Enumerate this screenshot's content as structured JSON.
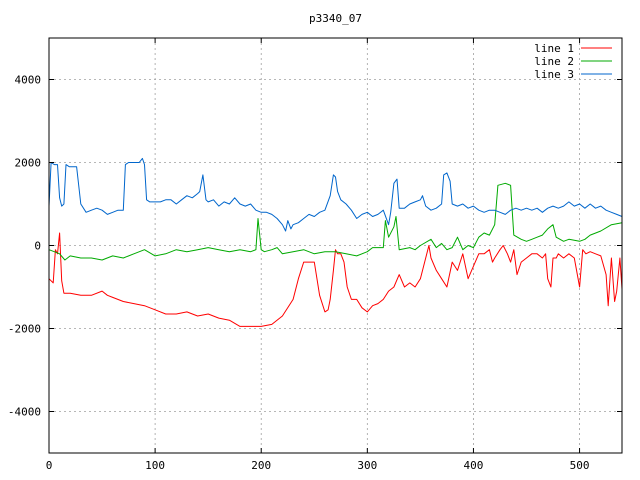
{
  "chart_data": {
    "type": "line",
    "title": "p3340_07",
    "xlabel": "",
    "ylabel": "",
    "xlim": [
      0,
      540
    ],
    "ylim": [
      -5000,
      5000
    ],
    "xticks": [
      0,
      100,
      200,
      300,
      400,
      500
    ],
    "yticks": [
      -4000,
      -2000,
      0,
      2000,
      4000
    ],
    "xtick_labels": [
      "0",
      "100",
      "200",
      "300",
      "400",
      "500"
    ],
    "ytick_labels": [
      "-4000",
      "-2000",
      "0",
      "2000",
      "4000"
    ],
    "grid": true,
    "legend_position": "top-right",
    "series": [
      {
        "name": "line 1",
        "color": "#ff0000",
        "points": [
          [
            0,
            -800
          ],
          [
            2,
            -850
          ],
          [
            4,
            -900
          ],
          [
            6,
            -100
          ],
          [
            8,
            -200
          ],
          [
            10,
            300
          ],
          [
            12,
            -850
          ],
          [
            14,
            -1150
          ],
          [
            20,
            -1150
          ],
          [
            30,
            -1200
          ],
          [
            40,
            -1200
          ],
          [
            50,
            -1100
          ],
          [
            55,
            -1200
          ],
          [
            60,
            -1250
          ],
          [
            70,
            -1350
          ],
          [
            80,
            -1400
          ],
          [
            90,
            -1450
          ],
          [
            100,
            -1550
          ],
          [
            110,
            -1650
          ],
          [
            120,
            -1650
          ],
          [
            130,
            -1600
          ],
          [
            140,
            -1700
          ],
          [
            150,
            -1650
          ],
          [
            160,
            -1750
          ],
          [
            170,
            -1800
          ],
          [
            180,
            -1950
          ],
          [
            190,
            -1950
          ],
          [
            200,
            -1950
          ],
          [
            210,
            -1900
          ],
          [
            220,
            -1700
          ],
          [
            230,
            -1300
          ],
          [
            235,
            -800
          ],
          [
            240,
            -400
          ],
          [
            245,
            -400
          ],
          [
            250,
            -400
          ],
          [
            255,
            -1200
          ],
          [
            260,
            -1600
          ],
          [
            263,
            -1550
          ],
          [
            265,
            -1300
          ],
          [
            268,
            -600
          ],
          [
            270,
            -100
          ],
          [
            272,
            -200
          ],
          [
            275,
            -200
          ],
          [
            278,
            -400
          ],
          [
            281,
            -1000
          ],
          [
            285,
            -1300
          ],
          [
            290,
            -1300
          ],
          [
            295,
            -1500
          ],
          [
            300,
            -1600
          ],
          [
            305,
            -1450
          ],
          [
            310,
            -1400
          ],
          [
            315,
            -1300
          ],
          [
            320,
            -1100
          ],
          [
            325,
            -1000
          ],
          [
            330,
            -700
          ],
          [
            335,
            -1000
          ],
          [
            340,
            -900
          ],
          [
            345,
            -1000
          ],
          [
            350,
            -800
          ],
          [
            355,
            -300
          ],
          [
            358,
            0
          ],
          [
            360,
            -300
          ],
          [
            365,
            -600
          ],
          [
            370,
            -800
          ],
          [
            375,
            -1000
          ],
          [
            380,
            -400
          ],
          [
            385,
            -600
          ],
          [
            390,
            -200
          ],
          [
            395,
            -800
          ],
          [
            400,
            -500
          ],
          [
            405,
            -200
          ],
          [
            410,
            -200
          ],
          [
            415,
            -100
          ],
          [
            418,
            -400
          ],
          [
            420,
            -300
          ],
          [
            425,
            -100
          ],
          [
            428,
            0
          ],
          [
            432,
            -200
          ],
          [
            435,
            -400
          ],
          [
            438,
            -100
          ],
          [
            441,
            -700
          ],
          [
            445,
            -400
          ],
          [
            450,
            -300
          ],
          [
            455,
            -200
          ],
          [
            460,
            -200
          ],
          [
            465,
            -300
          ],
          [
            468,
            -200
          ],
          [
            470,
            -800
          ],
          [
            473,
            -1000
          ],
          [
            475,
            -300
          ],
          [
            478,
            -300
          ],
          [
            480,
            -200
          ],
          [
            485,
            -300
          ],
          [
            490,
            -200
          ],
          [
            495,
            -300
          ],
          [
            500,
            -1000
          ],
          [
            503,
            -100
          ],
          [
            506,
            -200
          ],
          [
            510,
            -150
          ],
          [
            515,
            -200
          ],
          [
            520,
            -250
          ],
          [
            525,
            -700
          ],
          [
            527,
            -1450
          ],
          [
            530,
            -300
          ],
          [
            533,
            -1350
          ],
          [
            535,
            -1100
          ],
          [
            538,
            -300
          ],
          [
            540,
            -1050
          ]
        ]
      },
      {
        "name": "line 2",
        "color": "#00aa00",
        "points": [
          [
            0,
            -100
          ],
          [
            5,
            -150
          ],
          [
            10,
            -200
          ],
          [
            15,
            -350
          ],
          [
            20,
            -250
          ],
          [
            30,
            -300
          ],
          [
            40,
            -300
          ],
          [
            50,
            -350
          ],
          [
            60,
            -250
          ],
          [
            70,
            -300
          ],
          [
            80,
            -200
          ],
          [
            90,
            -100
          ],
          [
            100,
            -250
          ],
          [
            110,
            -200
          ],
          [
            120,
            -100
          ],
          [
            130,
            -150
          ],
          [
            140,
            -100
          ],
          [
            150,
            -50
          ],
          [
            160,
            -100
          ],
          [
            170,
            -150
          ],
          [
            180,
            -100
          ],
          [
            190,
            -150
          ],
          [
            195,
            -100
          ],
          [
            197,
            650
          ],
          [
            200,
            -100
          ],
          [
            203,
            -150
          ],
          [
            210,
            -100
          ],
          [
            215,
            -50
          ],
          [
            220,
            -200
          ],
          [
            230,
            -150
          ],
          [
            240,
            -100
          ],
          [
            250,
            -200
          ],
          [
            260,
            -150
          ],
          [
            270,
            -150
          ],
          [
            280,
            -200
          ],
          [
            290,
            -250
          ],
          [
            300,
            -150
          ],
          [
            305,
            -50
          ],
          [
            310,
            -50
          ],
          [
            315,
            -50
          ],
          [
            317,
            600
          ],
          [
            320,
            200
          ],
          [
            325,
            450
          ],
          [
            327,
            700
          ],
          [
            330,
            -100
          ],
          [
            340,
            -50
          ],
          [
            345,
            -100
          ],
          [
            350,
            0
          ],
          [
            360,
            150
          ],
          [
            365,
            -50
          ],
          [
            370,
            50
          ],
          [
            375,
            -100
          ],
          [
            380,
            -50
          ],
          [
            385,
            200
          ],
          [
            390,
            -100
          ],
          [
            395,
            0
          ],
          [
            400,
            -50
          ],
          [
            405,
            200
          ],
          [
            410,
            300
          ],
          [
            415,
            250
          ],
          [
            420,
            500
          ],
          [
            423,
            1450
          ],
          [
            430,
            1500
          ],
          [
            435,
            1450
          ],
          [
            438,
            250
          ],
          [
            445,
            150
          ],
          [
            450,
            100
          ],
          [
            455,
            150
          ],
          [
            460,
            200
          ],
          [
            465,
            250
          ],
          [
            470,
            400
          ],
          [
            475,
            500
          ],
          [
            478,
            200
          ],
          [
            485,
            100
          ],
          [
            490,
            150
          ],
          [
            500,
            100
          ],
          [
            505,
            150
          ],
          [
            510,
            250
          ],
          [
            520,
            350
          ],
          [
            530,
            500
          ],
          [
            540,
            550
          ]
        ]
      },
      {
        "name": "line 3",
        "color": "#0066cc",
        "points": [
          [
            0,
            950
          ],
          [
            2,
            2000
          ],
          [
            5,
            1950
          ],
          [
            8,
            1950
          ],
          [
            10,
            1150
          ],
          [
            12,
            950
          ],
          [
            14,
            1000
          ],
          [
            16,
            1950
          ],
          [
            19,
            1900
          ],
          [
            22,
            1900
          ],
          [
            26,
            1900
          ],
          [
            30,
            1000
          ],
          [
            35,
            800
          ],
          [
            40,
            850
          ],
          [
            45,
            900
          ],
          [
            50,
            850
          ],
          [
            55,
            750
          ],
          [
            60,
            800
          ],
          [
            65,
            850
          ],
          [
            70,
            850
          ],
          [
            72,
            1950
          ],
          [
            75,
            2000
          ],
          [
            80,
            2000
          ],
          [
            85,
            2000
          ],
          [
            88,
            2100
          ],
          [
            90,
            1950
          ],
          [
            92,
            1100
          ],
          [
            95,
            1050
          ],
          [
            100,
            1050
          ],
          [
            105,
            1050
          ],
          [
            110,
            1100
          ],
          [
            115,
            1100
          ],
          [
            120,
            1000
          ],
          [
            125,
            1100
          ],
          [
            130,
            1200
          ],
          [
            135,
            1150
          ],
          [
            140,
            1250
          ],
          [
            142,
            1300
          ],
          [
            145,
            1700
          ],
          [
            148,
            1100
          ],
          [
            150,
            1050
          ],
          [
            155,
            1100
          ],
          [
            160,
            950
          ],
          [
            165,
            1050
          ],
          [
            170,
            1000
          ],
          [
            175,
            1150
          ],
          [
            180,
            1000
          ],
          [
            185,
            950
          ],
          [
            190,
            1000
          ],
          [
            195,
            850
          ],
          [
            200,
            800
          ],
          [
            205,
            800
          ],
          [
            210,
            750
          ],
          [
            215,
            650
          ],
          [
            220,
            500
          ],
          [
            223,
            350
          ],
          [
            225,
            600
          ],
          [
            228,
            400
          ],
          [
            230,
            500
          ],
          [
            235,
            550
          ],
          [
            240,
            650
          ],
          [
            245,
            750
          ],
          [
            250,
            700
          ],
          [
            255,
            800
          ],
          [
            260,
            850
          ],
          [
            265,
            1200
          ],
          [
            268,
            1700
          ],
          [
            270,
            1650
          ],
          [
            272,
            1300
          ],
          [
            275,
            1100
          ],
          [
            280,
            1000
          ],
          [
            285,
            850
          ],
          [
            290,
            650
          ],
          [
            295,
            750
          ],
          [
            300,
            800
          ],
          [
            305,
            700
          ],
          [
            310,
            750
          ],
          [
            315,
            850
          ],
          [
            320,
            500
          ],
          [
            322,
            800
          ],
          [
            325,
            1500
          ],
          [
            328,
            1600
          ],
          [
            330,
            900
          ],
          [
            335,
            900
          ],
          [
            340,
            1000
          ],
          [
            345,
            1050
          ],
          [
            350,
            1100
          ],
          [
            352,
            1200
          ],
          [
            355,
            950
          ],
          [
            360,
            850
          ],
          [
            365,
            900
          ],
          [
            370,
            1000
          ],
          [
            372,
            1700
          ],
          [
            375,
            1750
          ],
          [
            378,
            1550
          ],
          [
            380,
            1000
          ],
          [
            385,
            950
          ],
          [
            390,
            1000
          ],
          [
            395,
            900
          ],
          [
            400,
            950
          ],
          [
            405,
            850
          ],
          [
            410,
            800
          ],
          [
            415,
            850
          ],
          [
            420,
            850
          ],
          [
            425,
            800
          ],
          [
            430,
            750
          ],
          [
            435,
            850
          ],
          [
            440,
            900
          ],
          [
            445,
            850
          ],
          [
            450,
            900
          ],
          [
            455,
            850
          ],
          [
            460,
            900
          ],
          [
            465,
            800
          ],
          [
            470,
            900
          ],
          [
            475,
            950
          ],
          [
            480,
            900
          ],
          [
            485,
            950
          ],
          [
            490,
            1050
          ],
          [
            495,
            950
          ],
          [
            500,
            1000
          ],
          [
            505,
            900
          ],
          [
            510,
            1000
          ],
          [
            515,
            900
          ],
          [
            520,
            950
          ],
          [
            525,
            850
          ],
          [
            530,
            800
          ],
          [
            535,
            750
          ],
          [
            540,
            700
          ]
        ]
      }
    ]
  }
}
